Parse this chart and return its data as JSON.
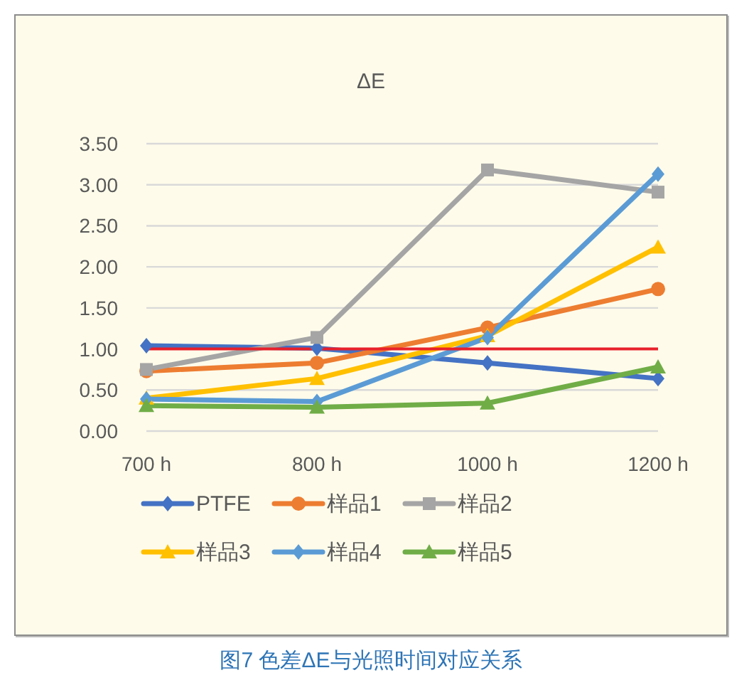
{
  "chart_data": {
    "type": "line",
    "title": "ΔE",
    "categories": [
      "700 h",
      "800 h",
      "1000 h",
      "1200 h"
    ],
    "series": [
      {
        "name": "PTFE",
        "color": "#4472c4",
        "marker": "diamond",
        "values": [
          1.04,
          1.01,
          0.83,
          0.64
        ]
      },
      {
        "name": "样品1",
        "color": "#ed7d31",
        "marker": "circle",
        "values": [
          0.73,
          0.83,
          1.26,
          1.73
        ]
      },
      {
        "name": "样品2",
        "color": "#a5a5a5",
        "marker": "square",
        "values": [
          0.75,
          1.14,
          3.18,
          2.91
        ]
      },
      {
        "name": "样品3",
        "color": "#ffc000",
        "marker": "triangle",
        "values": [
          0.4,
          0.64,
          1.16,
          2.24
        ]
      },
      {
        "name": "样品4",
        "color": "#5b9bd5",
        "marker": "diamond",
        "values": [
          0.39,
          0.36,
          1.14,
          3.13
        ]
      },
      {
        "name": "样品5",
        "color": "#70ad47",
        "marker": "triangle",
        "values": [
          0.31,
          0.29,
          0.34,
          0.78
        ]
      }
    ],
    "ylim": [
      0,
      3.5
    ],
    "yticks": [
      {
        "value": 0,
        "label": "0.00"
      },
      {
        "value": 0.5,
        "label": "0.50"
      },
      {
        "value": 1,
        "label": "1.00"
      },
      {
        "value": 1.5,
        "label": "1.50"
      },
      {
        "value": 2,
        "label": "2.00"
      },
      {
        "value": 2.5,
        "label": "2.50"
      },
      {
        "value": 3,
        "label": "3.00"
      },
      {
        "value": 3.5,
        "label": "3.50"
      }
    ],
    "grid": "y",
    "legend": "bottom",
    "ref_lines": [
      {
        "axis": "y",
        "value": 1.0,
        "color": "#e8212b"
      }
    ],
    "annotations": [
      "图7 色差ΔE与光照时间对应关系"
    ]
  }
}
